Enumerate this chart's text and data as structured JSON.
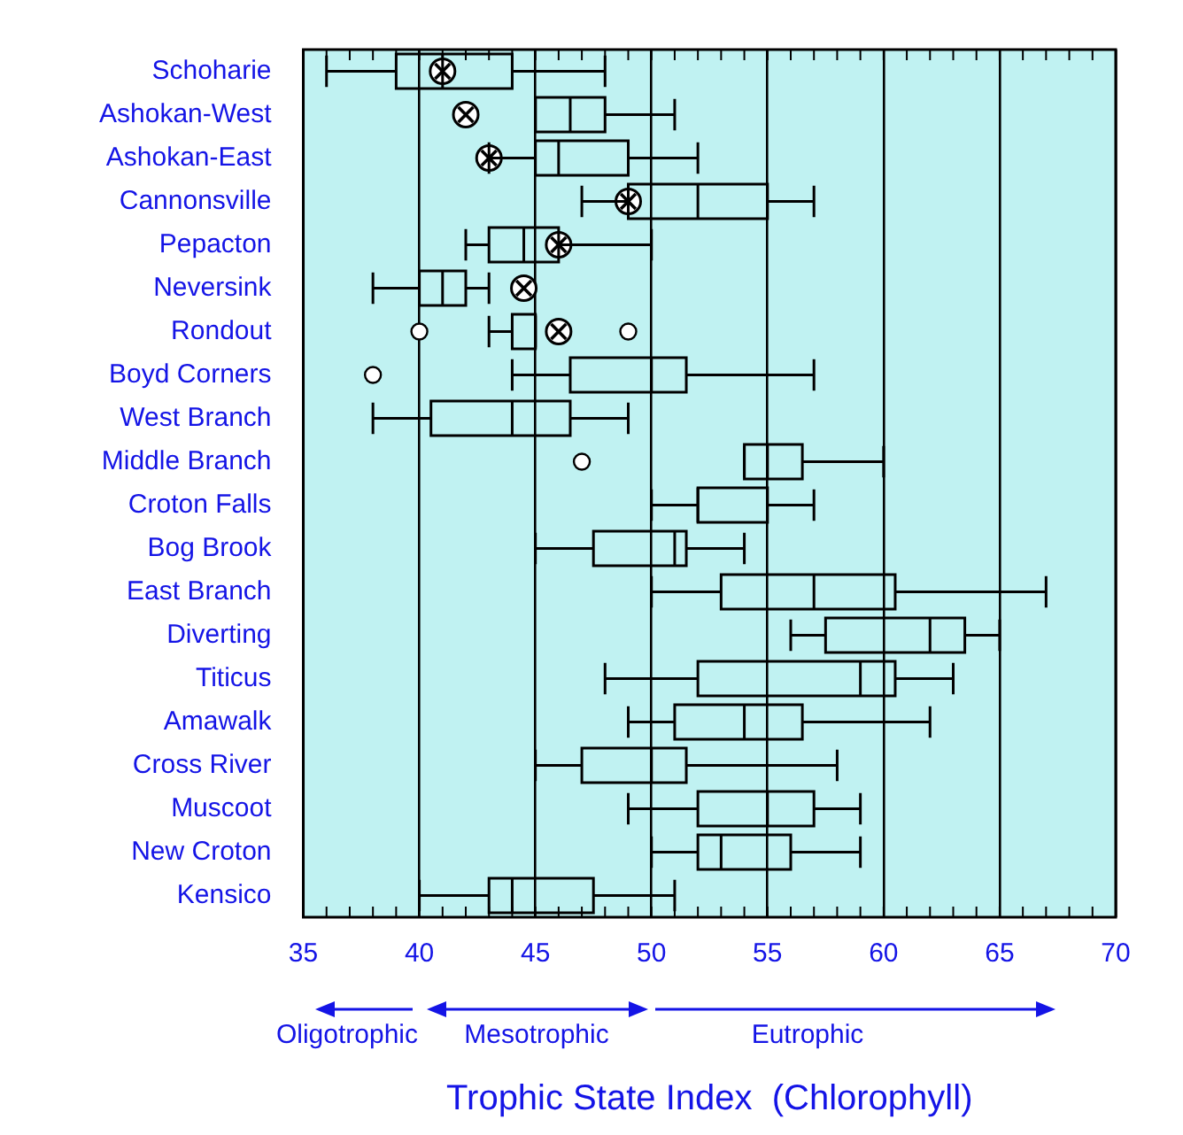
{
  "chart_data": {
    "type": "box",
    "orientation": "horizontal",
    "xlabel": "Trophic State Index  (Chlorophyll)",
    "categories": [
      "Schoharie",
      "Ashokan-West",
      "Ashokan-East",
      "Cannonsville",
      "Pepacton",
      "Neversink",
      "Rondout",
      "Boyd Corners",
      "West Branch",
      "Middle Branch",
      "Croton Falls",
      "Bog Brook",
      "East Branch",
      "Diverting",
      "Titicus",
      "Amawalk",
      "Cross River",
      "Muscoot",
      "New Croton",
      "Kensico"
    ],
    "boxes": [
      {
        "low": 36,
        "q1": 39,
        "median": 41,
        "q3": 44,
        "high": 48
      },
      {
        "low": 45,
        "q1": 45,
        "median": 46.5,
        "q3": 48,
        "high": 51
      },
      {
        "low": 43,
        "q1": 45,
        "median": 46,
        "q3": 49,
        "high": 52
      },
      {
        "low": 47,
        "q1": 49,
        "median": 52,
        "q3": 55,
        "high": 57
      },
      {
        "low": 42,
        "q1": 43,
        "median": 44.5,
        "q3": 46,
        "high": 50
      },
      {
        "low": 38,
        "q1": 40,
        "median": 41,
        "q3": 42,
        "high": 43
      },
      {
        "low": 43,
        "q1": 44,
        "median": 45,
        "q3": 45,
        "high": 45,
        "outliers": [
          40,
          49
        ]
      },
      {
        "low": 44,
        "q1": 46.5,
        "median": 50,
        "q3": 51.5,
        "high": 57,
        "outliers": [
          38
        ]
      },
      {
        "low": 38,
        "q1": 40.5,
        "median": 44,
        "q3": 46.5,
        "high": 49
      },
      {
        "low": 54,
        "q1": 54,
        "median": 55,
        "q3": 56.5,
        "high": 60,
        "outliers": [
          47
        ]
      },
      {
        "low": 50,
        "q1": 52,
        "median": 52,
        "q3": 55,
        "high": 57
      },
      {
        "low": 45,
        "q1": 47.5,
        "median": 51,
        "q3": 51.5,
        "high": 54
      },
      {
        "low": 50,
        "q1": 53,
        "median": 57,
        "q3": 60.5,
        "high": 67
      },
      {
        "low": 56,
        "q1": 57.5,
        "median": 62,
        "q3": 63.5,
        "high": 65
      },
      {
        "low": 48,
        "q1": 52,
        "median": 59,
        "q3": 60.5,
        "high": 63
      },
      {
        "low": 49,
        "q1": 51,
        "median": 54,
        "q3": 56.5,
        "high": 62
      },
      {
        "low": 45,
        "q1": 47,
        "median": 50,
        "q3": 51.5,
        "high": 58
      },
      {
        "low": 49,
        "q1": 52,
        "median": 55,
        "q3": 57,
        "high": 59
      },
      {
        "low": 50,
        "q1": 52,
        "median": 53,
        "q3": 56,
        "high": 59
      },
      {
        "low": 40,
        "q1": 43,
        "median": 44,
        "q3": 47.5,
        "high": 51
      }
    ],
    "series": [
      {
        "type": "scatter",
        "color": "#000000",
        "x": [
          "Schoharie",
          "Ashokan-West",
          "Ashokan-East",
          "Cannonsville",
          "Pepacton",
          "Neversink",
          "Rondout"
        ],
        "values": [
          41,
          42,
          43,
          49,
          46,
          44.5,
          46
        ]
      }
    ],
    "xlim": [
      35,
      70
    ],
    "xticks": [
      35,
      {
        "value": 36,
        "label": null
      },
      {
        "value": 37,
        "label": null
      },
      {
        "value": 38,
        "label": null
      },
      {
        "value": 39,
        "label": null
      },
      40,
      {
        "value": 41,
        "label": null
      },
      {
        "value": 42,
        "label": null
      },
      {
        "value": 43,
        "label": null
      },
      {
        "value": 44,
        "label": null
      },
      45,
      {
        "value": 46,
        "label": null
      },
      {
        "value": 47,
        "label": null
      },
      {
        "value": 48,
        "label": null
      },
      {
        "value": 49,
        "label": null
      },
      50,
      {
        "value": 51,
        "label": null
      },
      {
        "value": 52,
        "label": null
      },
      {
        "value": 53,
        "label": null
      },
      {
        "value": 54,
        "label": null
      },
      55,
      {
        "value": 56,
        "label": null
      },
      {
        "value": 57,
        "label": null
      },
      {
        "value": 58,
        "label": null
      },
      {
        "value": 59,
        "label": null
      },
      60,
      {
        "value": 61,
        "label": null
      },
      {
        "value": 62,
        "label": null
      },
      {
        "value": 63,
        "label": null
      },
      {
        "value": 64,
        "label": null
      },
      65,
      {
        "value": 66,
        "label": null
      },
      {
        "value": 67,
        "label": null
      },
      {
        "value": 68,
        "label": null
      },
      {
        "value": 69,
        "label": null
      },
      70
    ],
    "annotations": [
      "Oligotrophic",
      "Mesotrophic",
      "Eutrophic"
    ],
    "grid": "x",
    "legend": false
  }
}
